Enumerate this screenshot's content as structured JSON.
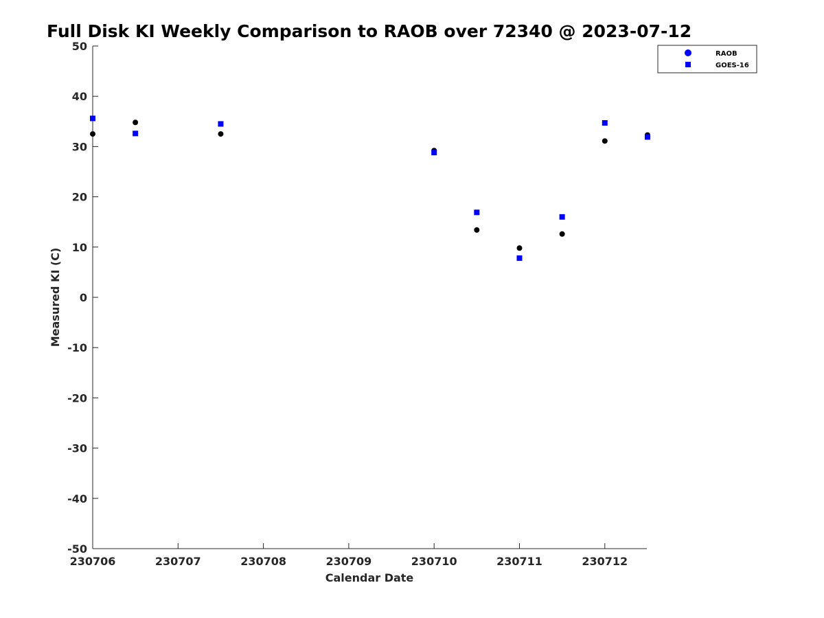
{
  "chart_data": {
    "type": "scatter",
    "title": "Full Disk KI Weekly Comparison to RAOB over 72340 @ 2023-07-12",
    "xlabel": "Calendar Date",
    "ylabel": "Measured KI (C)",
    "ylim": [
      -50,
      50
    ],
    "xlim": [
      "230706",
      "230712.5"
    ],
    "yticks": [
      "50",
      "40",
      "30",
      "20",
      "10",
      "0",
      "-10",
      "-20",
      "-30",
      "-40",
      "-50"
    ],
    "xticks": [
      "230706",
      "230707",
      "230708",
      "230709",
      "230710",
      "230711",
      "230712"
    ],
    "grid": false,
    "legend_position": "top-right",
    "series": [
      {
        "name": "RAOB",
        "marker": "circle",
        "color": "#000000",
        "legend_color": "#0000ff",
        "points": [
          {
            "x": "230706 00Z",
            "y": 32.5
          },
          {
            "x": "230706 12Z",
            "y": 34.8
          },
          {
            "x": "230707 12Z",
            "y": 32.5
          },
          {
            "x": "230710 00Z",
            "y": 29.2
          },
          {
            "x": "230710 12Z",
            "y": 13.4
          },
          {
            "x": "230711 00Z",
            "y": 9.8
          },
          {
            "x": "230711 12Z",
            "y": 12.6
          },
          {
            "x": "230712 00Z",
            "y": 31.1
          },
          {
            "x": "230712 12Z",
            "y": 32.3
          }
        ]
      },
      {
        "name": "GOES-16",
        "marker": "square",
        "color": "#0000ff",
        "legend_color": "#0000ff",
        "points": [
          {
            "x": "230706 00Z",
            "y": 35.6
          },
          {
            "x": "230706 12Z",
            "y": 32.6
          },
          {
            "x": "230707 12Z",
            "y": 34.5
          },
          {
            "x": "230710 00Z",
            "y": 28.8
          },
          {
            "x": "230710 12Z",
            "y": 16.9
          },
          {
            "x": "230711 00Z",
            "y": 7.8
          },
          {
            "x": "230711 12Z",
            "y": 16.0
          },
          {
            "x": "230712 00Z",
            "y": 34.7
          },
          {
            "x": "230712 12Z",
            "y": 31.9
          }
        ]
      }
    ]
  }
}
